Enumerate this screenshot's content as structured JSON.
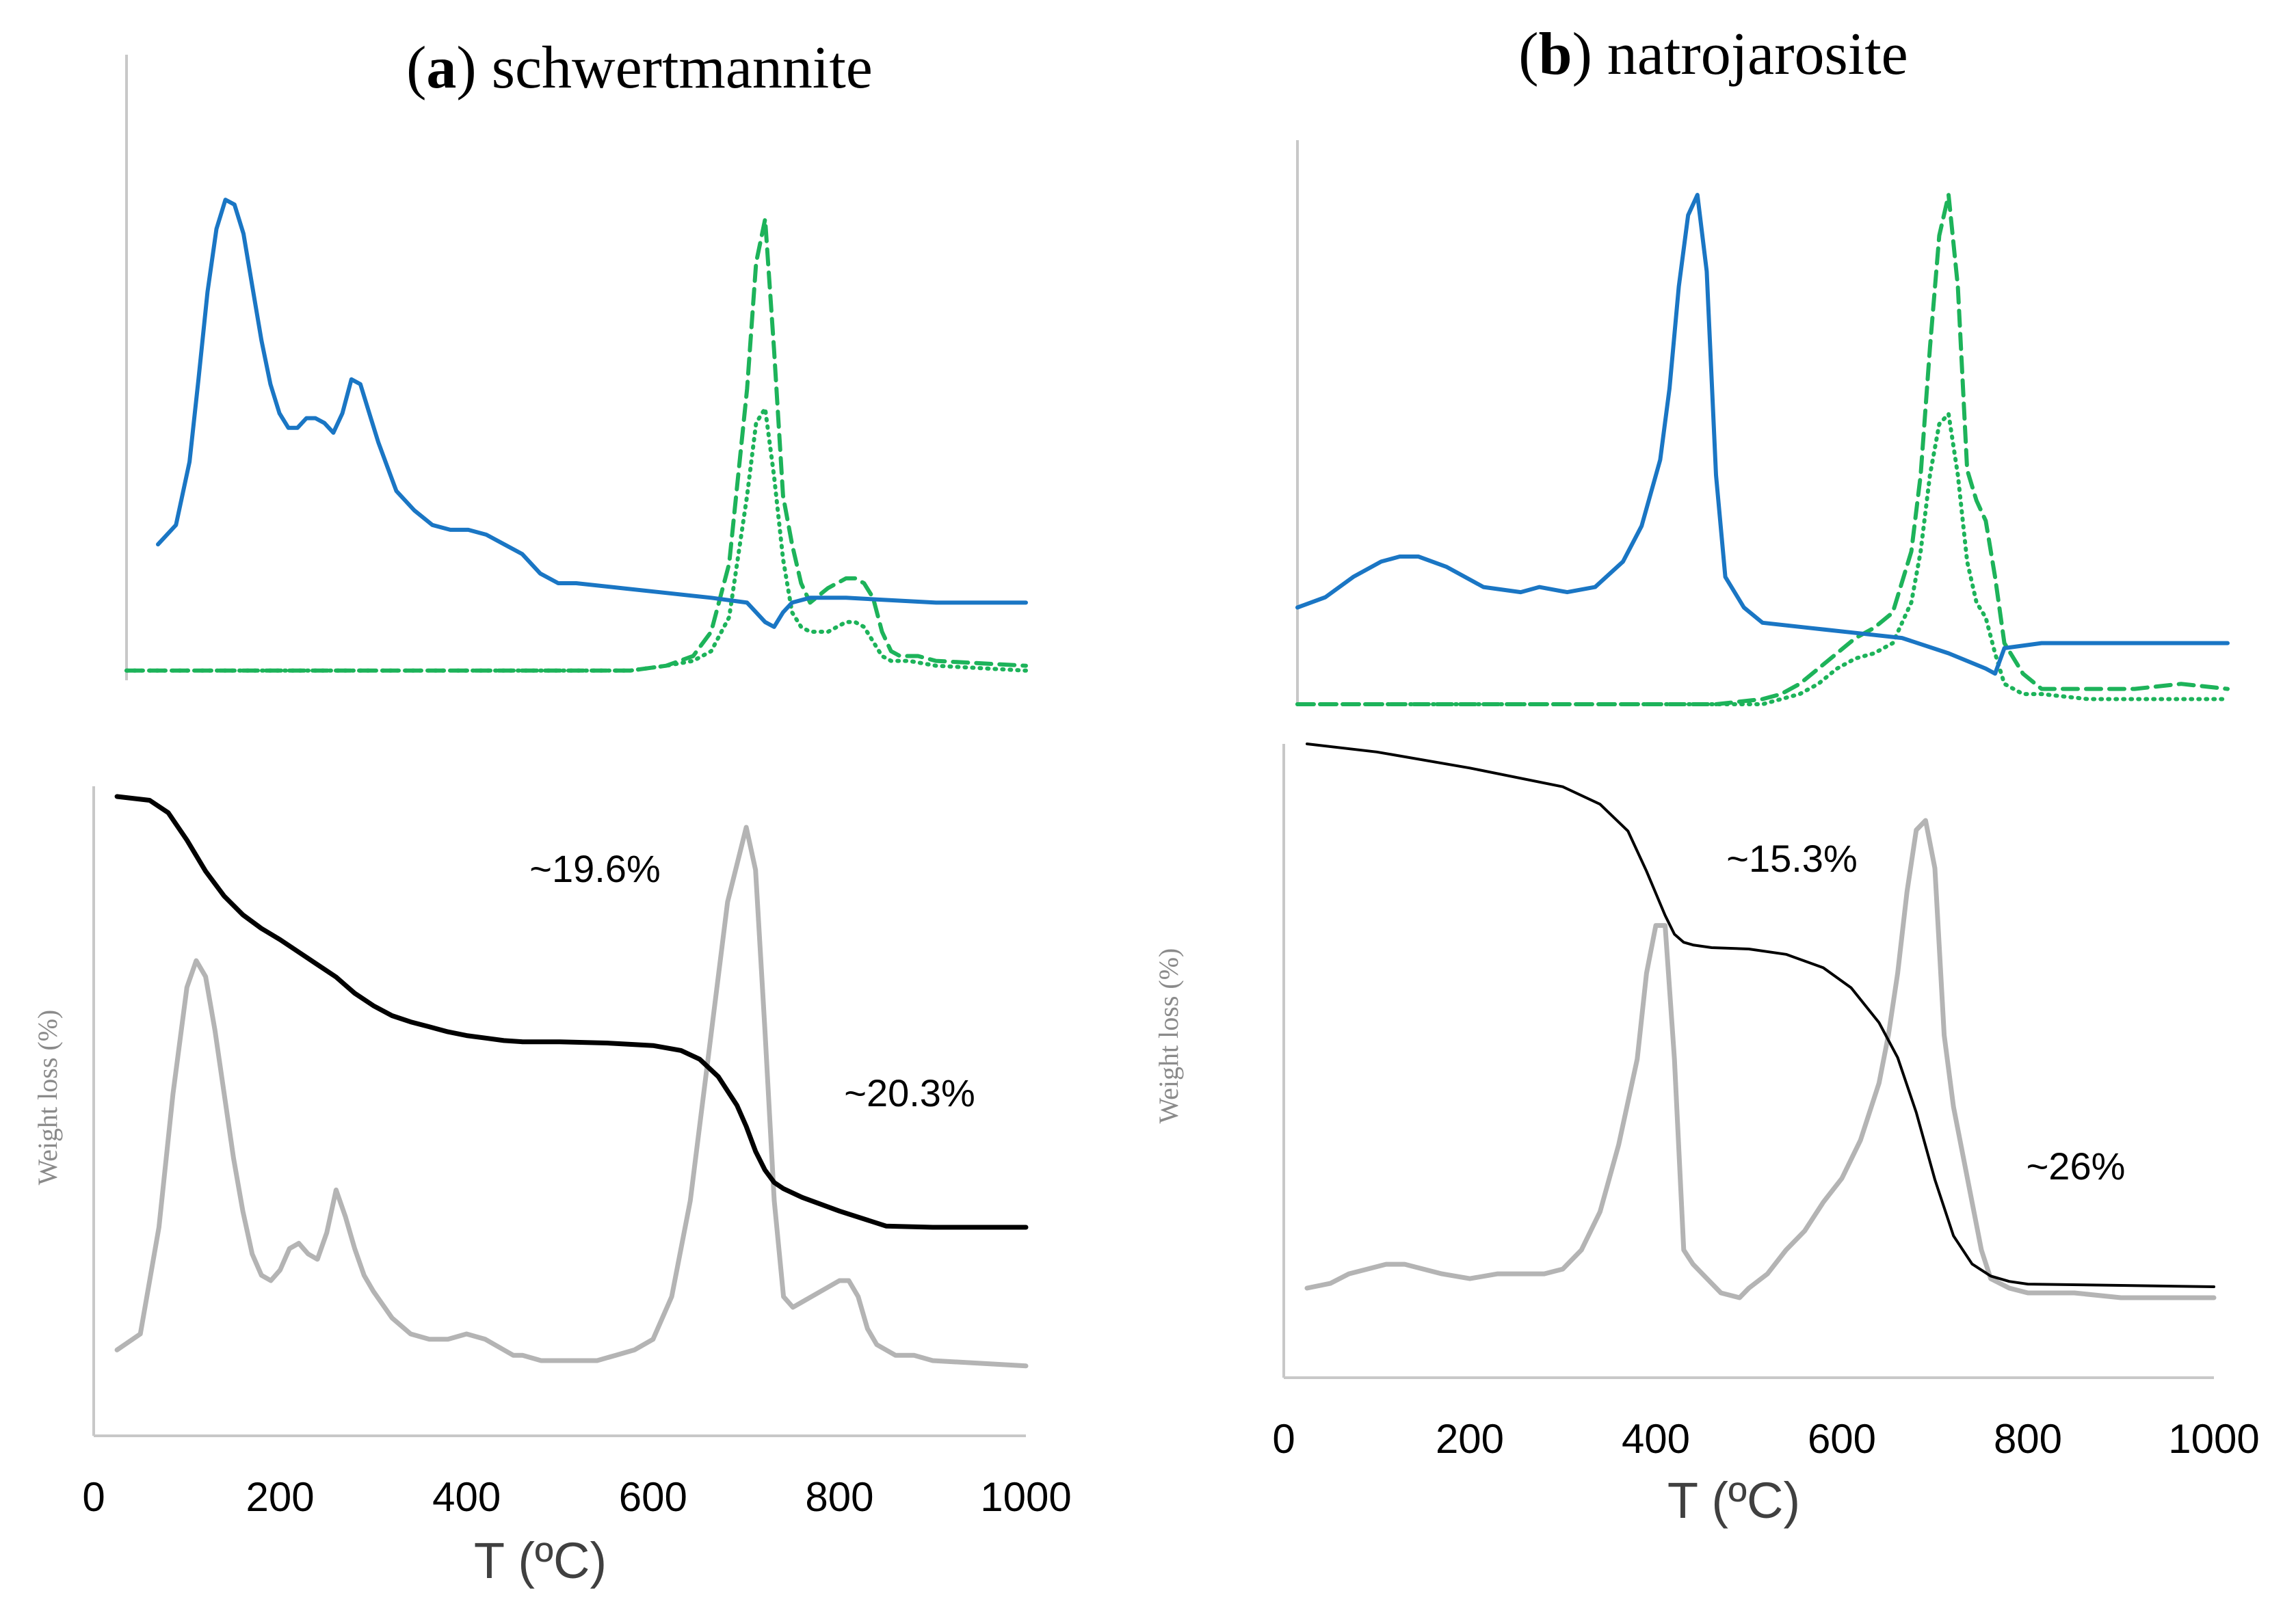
{
  "colors": {
    "blue": "#1a76c4",
    "green": "#1db35a",
    "black": "#000000",
    "gray": "#b4b4b4"
  },
  "chart_data": [
    {
      "id": "a",
      "type": "line",
      "title_letter": "a",
      "title_rest": " schwertmannite",
      "xlabel": "T (ºC)",
      "ylabel": "Weight loss (%)",
      "xlim": [
        0,
        1000
      ],
      "xticks": [
        "0",
        "200",
        "400",
        "600",
        "800",
        "1000"
      ],
      "annotations": [
        "~19.6%",
        "~20.3%"
      ],
      "ms_series": [
        {
          "name": "ms-blue-solid",
          "style": "solid",
          "color": "blue",
          "x": [
            35,
            55,
            70,
            80,
            90,
            100,
            110,
            120,
            130,
            140,
            150,
            160,
            170,
            180,
            190,
            200,
            210,
            220,
            230,
            240,
            250,
            260,
            270,
            280,
            290,
            300,
            320,
            340,
            360,
            380,
            400,
            420,
            440,
            460,
            480,
            500,
            550,
            600,
            650,
            690,
            710,
            720,
            730,
            740,
            760,
            800,
            900,
            1000
          ],
          "y": [
            0.28,
            0.32,
            0.45,
            0.62,
            0.8,
            0.93,
            0.99,
            0.98,
            0.92,
            0.81,
            0.7,
            0.61,
            0.55,
            0.52,
            0.52,
            0.54,
            0.54,
            0.53,
            0.51,
            0.55,
            0.62,
            0.61,
            0.55,
            0.49,
            0.44,
            0.39,
            0.35,
            0.32,
            0.31,
            0.31,
            0.3,
            0.28,
            0.26,
            0.22,
            0.2,
            0.2,
            0.19,
            0.18,
            0.17,
            0.16,
            0.12,
            0.11,
            0.14,
            0.16,
            0.17,
            0.17,
            0.16,
            0.16
          ]
        },
        {
          "name": "ms-green-dashed",
          "style": "dashed",
          "color": "green",
          "x": [
            0,
            520,
            560,
            600,
            630,
            650,
            670,
            690,
            700,
            710,
            720,
            730,
            740,
            750,
            760,
            780,
            800,
            810,
            820,
            830,
            840,
            850,
            860,
            880,
            900,
            1000
          ],
          "y": [
            0.02,
            0.02,
            0.02,
            0.03,
            0.05,
            0.1,
            0.24,
            0.6,
            0.86,
            0.95,
            0.68,
            0.38,
            0.28,
            0.2,
            0.16,
            0.19,
            0.21,
            0.21,
            0.2,
            0.17,
            0.1,
            0.06,
            0.05,
            0.05,
            0.04,
            0.03
          ]
        },
        {
          "name": "ms-green-dotted",
          "style": "dotted",
          "color": "green",
          "x": [
            0,
            520,
            560,
            600,
            630,
            650,
            670,
            690,
            700,
            710,
            720,
            730,
            740,
            750,
            760,
            780,
            800,
            810,
            820,
            830,
            840,
            850,
            870,
            900,
            1000
          ],
          "y": [
            0.02,
            0.02,
            0.02,
            0.03,
            0.04,
            0.06,
            0.13,
            0.38,
            0.53,
            0.56,
            0.42,
            0.25,
            0.14,
            0.11,
            0.1,
            0.1,
            0.12,
            0.12,
            0.11,
            0.08,
            0.05,
            0.04,
            0.04,
            0.03,
            0.02
          ]
        }
      ],
      "tg": {
        "name": "tg-black",
        "color": "black",
        "width": 7,
        "x": [
          25,
          60,
          80,
          100,
          120,
          140,
          160,
          180,
          200,
          220,
          240,
          260,
          280,
          300,
          320,
          340,
          360,
          380,
          400,
          420,
          440,
          460,
          500,
          550,
          600,
          630,
          650,
          670,
          690,
          700,
          710,
          720,
          730,
          740,
          760,
          800,
          850,
          900,
          1000
        ],
        "y": [
          100,
          99.7,
          98.7,
          96.5,
          94,
          92,
          90.5,
          89.4,
          88.5,
          87.5,
          86.5,
          85.5,
          84.2,
          83.2,
          82.4,
          81.9,
          81.5,
          81.1,
          80.8,
          80.6,
          80.4,
          80.3,
          80.3,
          80.2,
          80.0,
          79.6,
          78.9,
          77.5,
          75.2,
          73.5,
          71.5,
          70,
          69,
          68.5,
          67.8,
          66.7,
          65.5,
          65.4,
          65.4
        ]
      },
      "dtg": {
        "name": "dtg-gray",
        "color": "gray",
        "x": [
          25,
          50,
          70,
          85,
          100,
          110,
          120,
          130,
          140,
          150,
          160,
          170,
          180,
          190,
          200,
          210,
          220,
          230,
          240,
          250,
          260,
          270,
          280,
          290,
          300,
          320,
          340,
          360,
          380,
          400,
          420,
          440,
          450,
          460,
          480,
          500,
          540,
          560,
          580,
          600,
          620,
          640,
          660,
          680,
          700,
          710,
          720,
          730,
          740,
          750,
          760,
          780,
          800,
          810,
          820,
          830,
          840,
          850,
          860,
          880,
          900,
          1000
        ],
        "y": [
          0.02,
          0.05,
          0.25,
          0.5,
          0.7,
          0.75,
          0.72,
          0.62,
          0.5,
          0.38,
          0.28,
          0.2,
          0.16,
          0.15,
          0.17,
          0.21,
          0.22,
          0.2,
          0.19,
          0.24,
          0.32,
          0.27,
          0.21,
          0.16,
          0.13,
          0.08,
          0.05,
          0.04,
          0.04,
          0.05,
          0.04,
          0.02,
          0.01,
          0.01,
          0.0,
          0.0,
          0.0,
          0.01,
          0.02,
          0.04,
          0.12,
          0.3,
          0.58,
          0.86,
          1.0,
          0.92,
          0.62,
          0.3,
          0.12,
          0.1,
          0.11,
          0.13,
          0.15,
          0.15,
          0.12,
          0.06,
          0.03,
          0.02,
          0.01,
          0.01,
          0.0,
          -0.01
        ]
      }
    },
    {
      "id": "b",
      "type": "line",
      "title_letter": "b",
      "title_rest": " natrojarosite",
      "xlabel": "T (ºC)",
      "ylabel": "Weight loss (%)",
      "xlim": [
        0,
        1000
      ],
      "xticks": [
        "0",
        "200",
        "400",
        "600",
        "800",
        "1000"
      ],
      "annotations": [
        "~15.3%",
        "~26%"
      ],
      "ms_series": [
        {
          "name": "ms-blue-solid",
          "style": "solid",
          "color": "blue",
          "x": [
            0,
            30,
            60,
            90,
            110,
            130,
            160,
            200,
            240,
            260,
            290,
            320,
            350,
            370,
            390,
            400,
            410,
            420,
            430,
            440,
            450,
            460,
            480,
            500,
            550,
            600,
            650,
            700,
            740,
            750,
            760,
            800,
            900,
            1000
          ],
          "y": [
            0.19,
            0.21,
            0.25,
            0.28,
            0.29,
            0.29,
            0.27,
            0.23,
            0.22,
            0.23,
            0.22,
            0.23,
            0.28,
            0.35,
            0.48,
            0.62,
            0.82,
            0.96,
            1.0,
            0.85,
            0.45,
            0.25,
            0.19,
            0.16,
            0.15,
            0.14,
            0.13,
            0.1,
            0.07,
            0.06,
            0.11,
            0.12,
            0.12,
            0.12
          ]
        },
        {
          "name": "ms-green-dashed",
          "style": "dashed",
          "color": "green",
          "x": [
            0,
            450,
            500,
            520,
            540,
            560,
            580,
            600,
            620,
            640,
            660,
            670,
            680,
            690,
            700,
            710,
            720,
            730,
            740,
            750,
            760,
            780,
            800,
            850,
            900,
            950,
            1000
          ],
          "y": [
            0.0,
            0.0,
            0.01,
            0.02,
            0.04,
            0.07,
            0.1,
            0.13,
            0.15,
            0.18,
            0.3,
            0.45,
            0.7,
            0.92,
            1.0,
            0.82,
            0.46,
            0.4,
            0.36,
            0.25,
            0.12,
            0.06,
            0.03,
            0.03,
            0.03,
            0.04,
            0.03
          ]
        },
        {
          "name": "ms-green-dotted",
          "style": "dotted",
          "color": "green",
          "x": [
            0,
            500,
            520,
            540,
            560,
            580,
            600,
            620,
            640,
            660,
            670,
            680,
            690,
            700,
            710,
            720,
            730,
            740,
            750,
            760,
            780,
            800,
            850,
            900,
            1000
          ],
          "y": [
            0.0,
            0.0,
            0.01,
            0.02,
            0.04,
            0.07,
            0.09,
            0.1,
            0.12,
            0.2,
            0.3,
            0.45,
            0.55,
            0.57,
            0.45,
            0.28,
            0.2,
            0.17,
            0.1,
            0.04,
            0.02,
            0.02,
            0.01,
            0.01,
            0.01
          ]
        }
      ],
      "tg": {
        "name": "tg-black",
        "color": "black",
        "width": 4,
        "x": [
          25,
          100,
          200,
          300,
          340,
          370,
          390,
          410,
          420,
          430,
          440,
          460,
          500,
          540,
          580,
          610,
          640,
          660,
          680,
          700,
          720,
          740,
          760,
          780,
          800,
          900,
          1000
        ],
        "y": [
          100,
          99.4,
          98.2,
          96.8,
          95.5,
          93.5,
          90.5,
          87.2,
          85.8,
          85.2,
          85,
          84.8,
          84.7,
          84.3,
          83.3,
          81.8,
          79.2,
          76.6,
          72.5,
          67.5,
          63.3,
          61.2,
          60.3,
          59.9,
          59.7,
          59.6,
          59.5
        ]
      },
      "dtg": {
        "name": "dtg-gray",
        "color": "gray",
        "x": [
          25,
          50,
          70,
          90,
          110,
          130,
          150,
          170,
          200,
          230,
          240,
          250,
          260,
          280,
          300,
          320,
          340,
          360,
          380,
          390,
          400,
          410,
          420,
          430,
          440,
          450,
          460,
          470,
          490,
          500,
          520,
          540,
          560,
          580,
          600,
          620,
          640,
          650,
          660,
          670,
          680,
          690,
          700,
          710,
          720,
          730,
          740,
          750,
          760,
          780,
          800,
          850,
          900,
          1000
        ],
        "y": [
          0.02,
          0.03,
          0.05,
          0.06,
          0.07,
          0.07,
          0.06,
          0.05,
          0.04,
          0.05,
          0.05,
          0.05,
          0.05,
          0.05,
          0.06,
          0.1,
          0.18,
          0.32,
          0.5,
          0.68,
          0.78,
          0.78,
          0.5,
          0.1,
          0.07,
          0.05,
          0.03,
          0.01,
          0.0,
          0.02,
          0.05,
          0.1,
          0.14,
          0.2,
          0.25,
          0.33,
          0.45,
          0.55,
          0.68,
          0.85,
          0.98,
          1.0,
          0.9,
          0.55,
          0.4,
          0.3,
          0.2,
          0.1,
          0.04,
          0.02,
          0.01,
          0.01,
          0.0,
          0.0
        ]
      }
    }
  ]
}
